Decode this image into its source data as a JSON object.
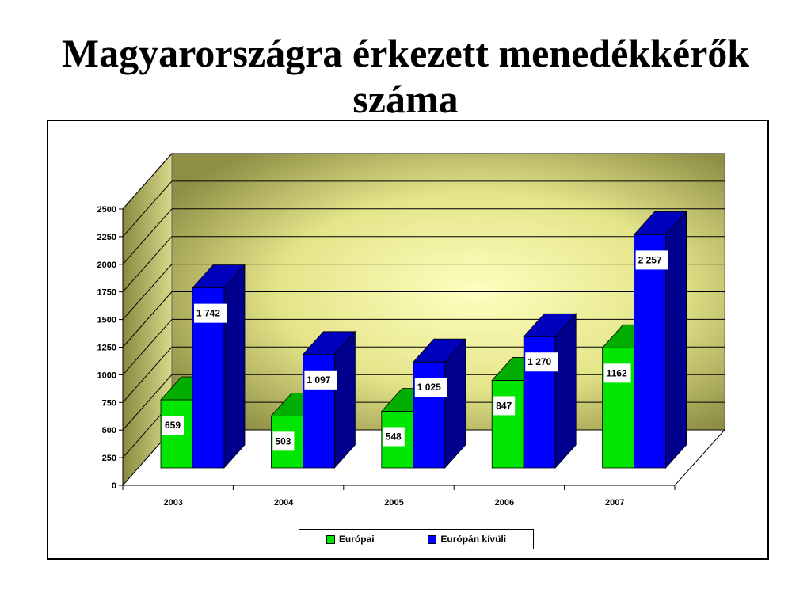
{
  "slide": {
    "title_line1": "Magyarországra érkezett menedékkérők",
    "title_line2": "száma"
  },
  "chart_data": {
    "type": "bar",
    "categories": [
      "2003",
      "2004",
      "2005",
      "2006",
      "2007"
    ],
    "series": [
      {
        "name": "Európai",
        "values": [
          659,
          503,
          548,
          847,
          1162
        ],
        "labels": [
          "659",
          "503",
          "548",
          "847",
          "1162"
        ],
        "color": "#00e600"
      },
      {
        "name": "Európán kívüli",
        "values": [
          1742,
          1097,
          1025,
          1270,
          2257
        ],
        "labels": [
          "1 742",
          "1 097",
          "1 025",
          "1 270",
          "2 257"
        ],
        "color": "#0000ff"
      }
    ],
    "yticks": [
      0,
      250,
      500,
      750,
      1000,
      1250,
      1500,
      1750,
      2000,
      2250,
      2500
    ],
    "ylim": [
      0,
      2500
    ],
    "grid": true,
    "legend_position": "bottom",
    "style": "3d-clustered-column"
  }
}
